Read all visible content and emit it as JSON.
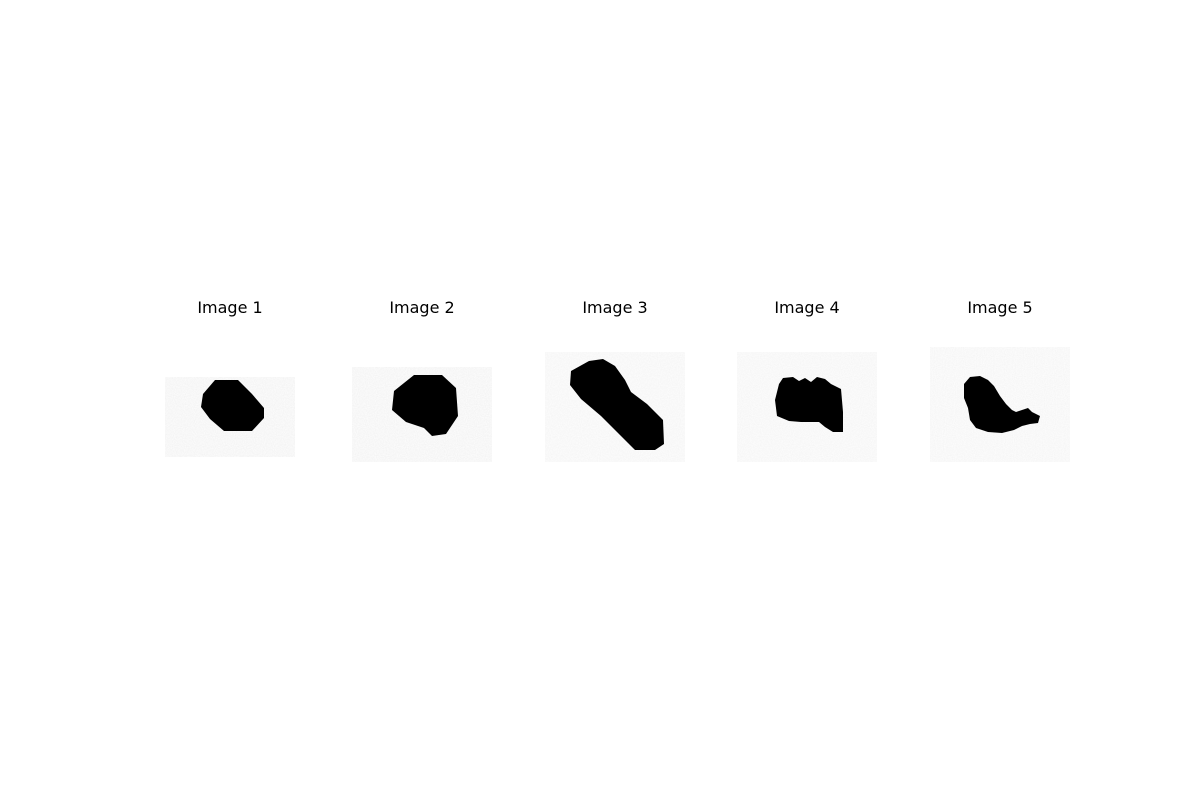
{
  "figure": {
    "panels": [
      {
        "title": "Image 1",
        "shape": "round-blob"
      },
      {
        "title": "Image 2",
        "shape": "round-blob"
      },
      {
        "title": "Image 3",
        "shape": "elongated-diagonal-blob"
      },
      {
        "title": "Image 4",
        "shape": "lumpy-rectangular-blob"
      },
      {
        "title": "Image 5",
        "shape": "irregular-blob"
      }
    ],
    "colors": {
      "background": "#ffffff",
      "foreground": "#000000"
    }
  }
}
